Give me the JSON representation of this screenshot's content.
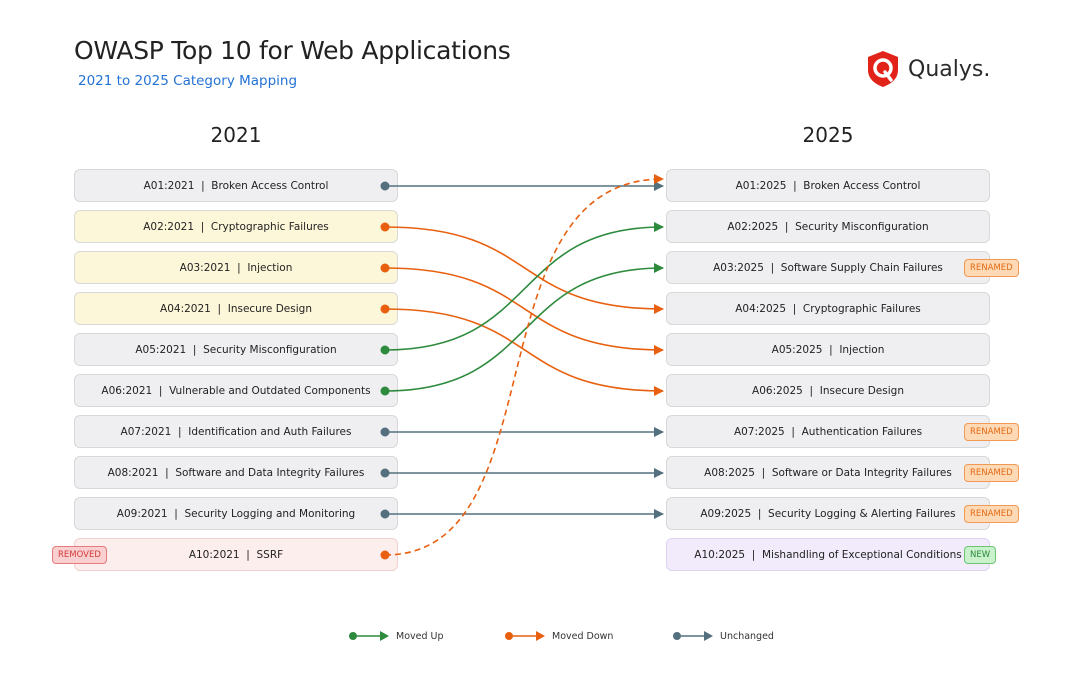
{
  "title": "OWASP Top 10 for Web Applications",
  "subtitle": "2021 to 2025 Category Mapping",
  "logo": {
    "text": "Qualys.",
    "color": "#e2231a"
  },
  "columns": {
    "left": "2021",
    "right": "2025"
  },
  "colors": {
    "up": "#2e8b3e",
    "down": "#e8600f",
    "same": "#54707e"
  },
  "left": [
    {
      "label": "A01:2021  |  Broken Access Control",
      "style": "plain"
    },
    {
      "label": "A02:2021  |  Cryptographic Failures",
      "style": "down"
    },
    {
      "label": "A03:2021  |  Injection",
      "style": "down"
    },
    {
      "label": "A04:2021  |  Insecure Design",
      "style": "down"
    },
    {
      "label": "A05:2021  |  Security Misconfiguration",
      "style": "plain"
    },
    {
      "label": "A06:2021  |  Vulnerable and Outdated Components",
      "style": "plain"
    },
    {
      "label": "A07:2021  |  Identification and Auth Failures",
      "style": "plain"
    },
    {
      "label": "A08:2021  |  Software and Data Integrity Failures",
      "style": "plain"
    },
    {
      "label": "A09:2021  |  Security Logging and Monitoring",
      "style": "plain"
    },
    {
      "label": "A10:2021  |  SSRF",
      "style": "removed",
      "badge": "REMOVED"
    }
  ],
  "right": [
    {
      "label": "A01:2025  |  Broken Access Control",
      "style": "plain"
    },
    {
      "label": "A02:2025  |  Security Misconfiguration",
      "style": "plain"
    },
    {
      "label": "A03:2025  |  Software Supply Chain Failures",
      "style": "plain",
      "badge": "RENAMED"
    },
    {
      "label": "A04:2025  |  Cryptographic Failures",
      "style": "plain"
    },
    {
      "label": "A05:2025  |  Injection",
      "style": "plain"
    },
    {
      "label": "A06:2025  |  Insecure Design",
      "style": "plain"
    },
    {
      "label": "A07:2025  |  Authentication Failures",
      "style": "plain",
      "badge": "RENAMED"
    },
    {
      "label": "A08:2025  |  Software or Data Integrity Failures",
      "style": "plain",
      "badge": "RENAMED"
    },
    {
      "label": "A09:2025  |  Security Logging & Alerting Failures",
      "style": "plain",
      "badge": "RENAMED"
    },
    {
      "label": "A10:2025  |  Mishandling of Exceptional Conditions",
      "style": "new",
      "badge": "NEW"
    }
  ],
  "links": [
    {
      "from": 0,
      "to": 0,
      "type": "same"
    },
    {
      "from": 1,
      "to": 3,
      "type": "down"
    },
    {
      "from": 2,
      "to": 4,
      "type": "down"
    },
    {
      "from": 3,
      "to": 5,
      "type": "down"
    },
    {
      "from": 4,
      "to": 1,
      "type": "up"
    },
    {
      "from": 5,
      "to": 2,
      "type": "up"
    },
    {
      "from": 6,
      "to": 6,
      "type": "same"
    },
    {
      "from": 7,
      "to": 7,
      "type": "same"
    },
    {
      "from": 8,
      "to": 8,
      "type": "same"
    },
    {
      "from": 9,
      "to": 0,
      "type": "down",
      "dashed": true
    }
  ],
  "legend": [
    {
      "label": "Moved Up",
      "type": "up"
    },
    {
      "label": "Moved Down",
      "type": "down"
    },
    {
      "label": "Unchanged",
      "type": "same"
    }
  ]
}
